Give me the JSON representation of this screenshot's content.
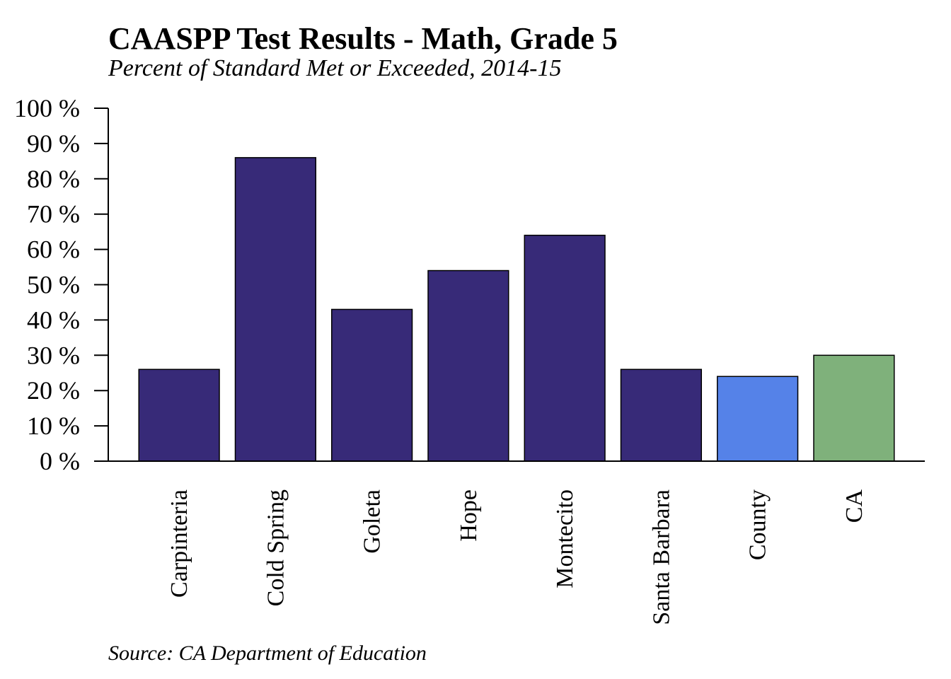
{
  "chart_data": {
    "type": "bar",
    "title": "CAASPP Test Results - Math, Grade 5",
    "subtitle": "Percent of Standard Met or Exceeded, 2014-15",
    "source": "Source: CA Department of Education",
    "xlabel": "",
    "ylabel": "",
    "categories": [
      "Carpinteria",
      "Cold Spring",
      "Goleta",
      "Hope",
      "Montecito",
      "Santa Barbara",
      "County",
      "CA"
    ],
    "values": [
      26,
      86,
      43,
      54,
      64,
      26,
      24,
      30
    ],
    "bar_colors": [
      "#372a78",
      "#372a78",
      "#372a78",
      "#372a78",
      "#372a78",
      "#372a78",
      "#5582e8",
      "#7fb17b"
    ],
    "ylim": [
      0,
      100
    ],
    "yticks": [
      0,
      10,
      20,
      30,
      40,
      50,
      60,
      70,
      80,
      90,
      100
    ],
    "ytick_labels": [
      "0 %",
      "10 %",
      "20 %",
      "30 %",
      "40 %",
      "50 %",
      "60 %",
      "70 %",
      "80 %",
      "90 %",
      "100 %"
    ],
    "grid": false,
    "legend": "none"
  }
}
